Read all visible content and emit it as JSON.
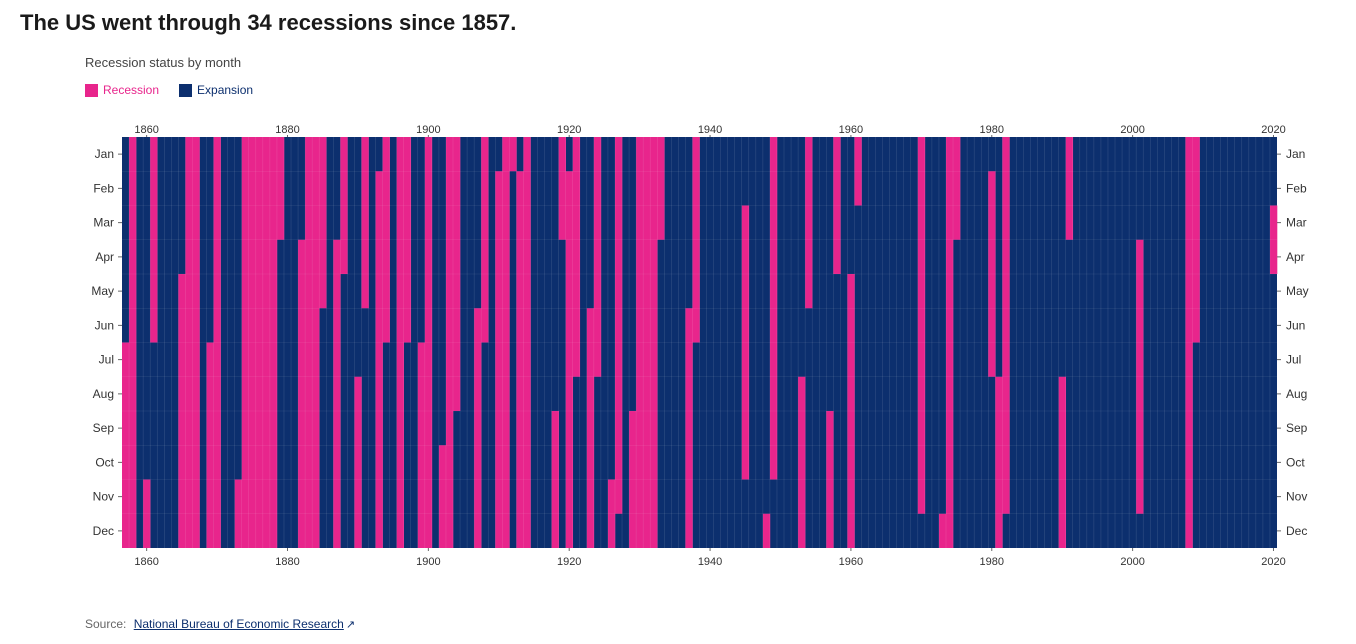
{
  "page": {
    "title": "The US went through 34 recessions since 1857.",
    "source_label": "Source:",
    "source_link_text": "National Bureau of Economic Research"
  },
  "chart_data": {
    "type": "heatmap",
    "subtitle": "Recession status by month",
    "legend": [
      {
        "label": "Recession",
        "color": "#e8258c"
      },
      {
        "label": "Expansion",
        "color": "#0c2f6e"
      }
    ],
    "x_start": 1857,
    "x_end": 2020,
    "x_ticks": [
      1860,
      1880,
      1900,
      1920,
      1940,
      1960,
      1980,
      2000,
      2020
    ],
    "months": [
      "Jan",
      "Feb",
      "Mar",
      "Apr",
      "May",
      "Jun",
      "Jul",
      "Aug",
      "Sep",
      "Oct",
      "Nov",
      "Dec"
    ],
    "recessions": [
      {
        "peak": "1857-06",
        "trough": "1858-12"
      },
      {
        "peak": "1860-10",
        "trough": "1861-06"
      },
      {
        "peak": "1865-04",
        "trough": "1867-12"
      },
      {
        "peak": "1869-06",
        "trough": "1870-12"
      },
      {
        "peak": "1873-10",
        "trough": "1879-03"
      },
      {
        "peak": "1882-03",
        "trough": "1885-05"
      },
      {
        "peak": "1887-03",
        "trough": "1888-04"
      },
      {
        "peak": "1890-07",
        "trough": "1891-05"
      },
      {
        "peak": "1893-01",
        "trough": "1894-06"
      },
      {
        "peak": "1895-12",
        "trough": "1897-06"
      },
      {
        "peak": "1899-06",
        "trough": "1900-12"
      },
      {
        "peak": "1902-09",
        "trough": "1904-08"
      },
      {
        "peak": "1907-05",
        "trough": "1908-06"
      },
      {
        "peak": "1910-01",
        "trough": "1912-01"
      },
      {
        "peak": "1913-01",
        "trough": "1914-12"
      },
      {
        "peak": "1918-08",
        "trough": "1919-03"
      },
      {
        "peak": "1920-01",
        "trough": "1921-07"
      },
      {
        "peak": "1923-05",
        "trough": "1924-07"
      },
      {
        "peak": "1926-10",
        "trough": "1927-11"
      },
      {
        "peak": "1929-08",
        "trough": "1933-03"
      },
      {
        "peak": "1937-05",
        "trough": "1938-06"
      },
      {
        "peak": "1945-02",
        "trough": "1945-10"
      },
      {
        "peak": "1948-11",
        "trough": "1949-10"
      },
      {
        "peak": "1953-07",
        "trough": "1954-05"
      },
      {
        "peak": "1957-08",
        "trough": "1958-04"
      },
      {
        "peak": "1960-04",
        "trough": "1961-02"
      },
      {
        "peak": "1969-12",
        "trough": "1970-11"
      },
      {
        "peak": "1973-11",
        "trough": "1975-03"
      },
      {
        "peak": "1980-01",
        "trough": "1980-07"
      },
      {
        "peak": "1981-07",
        "trough": "1982-11"
      },
      {
        "peak": "1990-07",
        "trough": "1991-03"
      },
      {
        "peak": "2001-03",
        "trough": "2001-11"
      },
      {
        "peak": "2007-12",
        "trough": "2009-06"
      },
      {
        "peak": "2020-02",
        "trough": "2020-04"
      }
    ]
  }
}
